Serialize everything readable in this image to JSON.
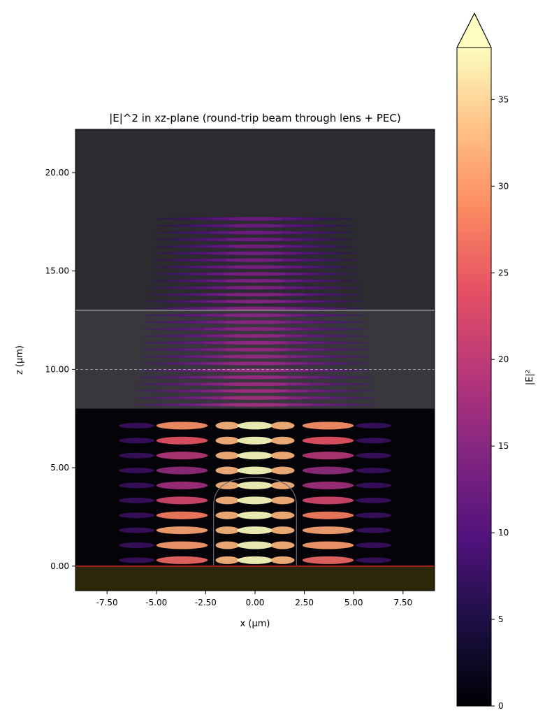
{
  "chart_data": {
    "type": "heatmap",
    "title": "|E|^2 in xz-plane (round-trip beam through lens + PEC)",
    "xlabel": "x (µm)",
    "ylabel": "z (µm)",
    "xlim": [
      -9.1,
      9.1
    ],
    "ylim": [
      -1.25,
      22.2
    ],
    "x_ticks": [
      -7.5,
      -5.0,
      -2.5,
      0.0,
      2.5,
      5.0,
      7.5
    ],
    "x_tick_labels": [
      "-7.50",
      "-5.00",
      "-2.50",
      "0.00",
      "2.50",
      "5.00",
      "7.50"
    ],
    "y_ticks": [
      0.0,
      5.0,
      10.0,
      15.0,
      20.0
    ],
    "y_tick_labels": [
      "0.00",
      "5.00",
      "10.00",
      "15.00",
      "20.00"
    ],
    "colormap": "magma",
    "colorbar": {
      "label": "|E|²",
      "range": [
        0,
        38
      ],
      "ticks": [
        0,
        5,
        10,
        15,
        20,
        25,
        30,
        35
      ],
      "tick_labels": [
        "0",
        "5",
        "10",
        "15",
        "20",
        "25",
        "30",
        "35"
      ],
      "extend": "max"
    },
    "regions": {
      "pec_surface_z": 0.0,
      "pec_color": "#a0211c",
      "substrate_color": "#2e2608",
      "lens_base_halfwidth": 2.1,
      "dense_region_top_z": 8.0,
      "upper_region_color": "#3a3a3e",
      "solid_line_z": 13.0,
      "dashed_line_z": 10.0,
      "beam_top_z": 17.8
    }
  }
}
